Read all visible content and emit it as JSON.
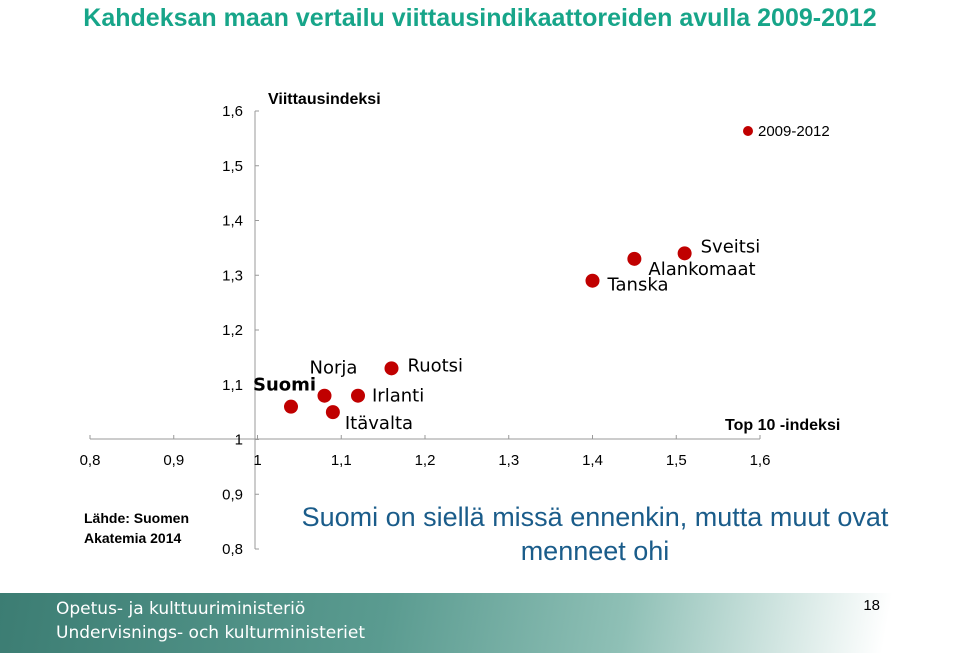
{
  "title": "Kahdeksan maan vertailu viittausindikaattoreiden avulla 2009-2012",
  "source": "Lähde: Suomen Akatemia 2014",
  "subtitle": "Suomi on siellä missä ennenkin, mutta muut ovat menneet ohi",
  "footer": {
    "line1": "Opetus- ja kulttuuriministeriö",
    "line2": "Undervisnings- och kulturministeriet"
  },
  "page_number": "18",
  "colors": {
    "title": "#17a589",
    "marker": "#c00000",
    "subtitle": "#1a5c8a",
    "footer": "#3c7d73"
  },
  "chart_data": {
    "type": "scatter",
    "xlabel": "Top 10 -indeksi",
    "ylabel": "Viittausindeksi",
    "xlim": [
      0.8,
      1.6
    ],
    "ylim": [
      0.8,
      1.6
    ],
    "x_ticks": [
      "0,8",
      "0,9",
      "1",
      "1,1",
      "1,2",
      "1,3",
      "1,4",
      "1,5",
      "1,6"
    ],
    "y_ticks": [
      "0,8",
      "0,9",
      "1",
      "1,1",
      "1,2",
      "1,3",
      "1,4",
      "1,5",
      "1,6"
    ],
    "legend": {
      "position": "top-right",
      "label": "2009-2012"
    },
    "series": [
      {
        "name": "2009-2012",
        "points": [
          {
            "label": "Suomi",
            "x": 1.04,
            "y": 1.06
          },
          {
            "label": "Norja",
            "x": 1.08,
            "y": 1.08
          },
          {
            "label": "Irlanti",
            "x": 1.12,
            "y": 1.08
          },
          {
            "label": "Itävalta",
            "x": 1.09,
            "y": 1.05
          },
          {
            "label": "Ruotsi",
            "x": 1.16,
            "y": 1.13
          },
          {
            "label": "Tanska",
            "x": 1.4,
            "y": 1.29
          },
          {
            "label": "Alankomaat",
            "x": 1.45,
            "y": 1.33
          },
          {
            "label": "Sveitsi",
            "x": 1.51,
            "y": 1.34
          }
        ]
      }
    ]
  }
}
